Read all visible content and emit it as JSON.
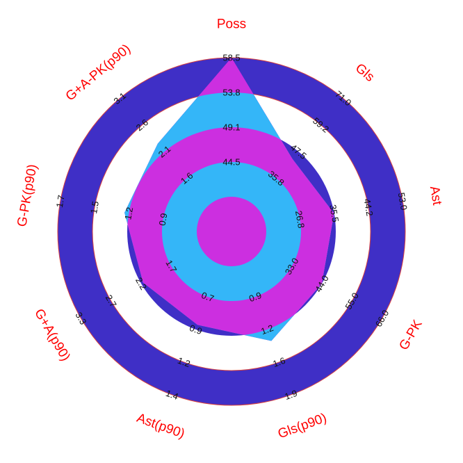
{
  "chart_data": {
    "type": "radar",
    "title": "",
    "parameters": [
      "Poss",
      "Gls",
      "Ast",
      "G-PK",
      "Gls(p90)",
      "Ast(p90)",
      "G+A(p90)",
      "G-PK(p90)",
      "G+A-PK(p90)"
    ],
    "ticks": [
      [
        "44.5",
        "49.1",
        "53.8",
        "58.5"
      ],
      [
        "35.8",
        "47.5",
        "59.2",
        "71.0"
      ],
      [
        "26.8",
        "35.5",
        "44.2",
        "53.0"
      ],
      [
        "33.0",
        "44.0",
        "55.0",
        "66.0"
      ],
      [
        "0.9",
        "1.2",
        "1.6",
        "1.9"
      ],
      [
        "0.7",
        "0.9",
        "1.2",
        "1.4"
      ],
      [
        "1.7",
        "2.2",
        "2.7",
        "3.3"
      ],
      [
        "0.9",
        "1.2",
        "1.5",
        "1.7"
      ],
      [
        "1.6",
        "2.1",
        "2.6",
        "3.1"
      ]
    ],
    "series": [
      {
        "values": [
          58.5,
          44.3,
          35.5,
          44.0,
          1.35,
          0.9,
          2.2,
          1.2,
          2.25
        ]
      }
    ],
    "colors": {
      "label": "#ff0000",
      "band": "#3f2fc6",
      "band_edge": "#d9413f",
      "ring_inner": "#34b6f8",
      "radar": "#cc2fe0",
      "tick_text": "#111111"
    }
  }
}
